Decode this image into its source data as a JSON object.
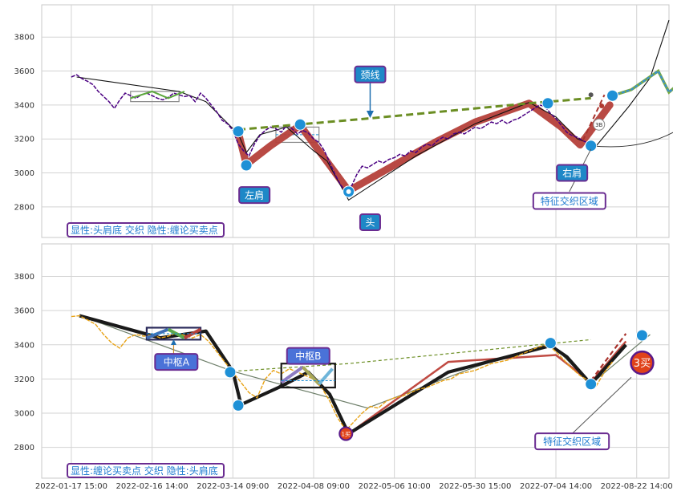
{
  "chart_data": {
    "type": "line",
    "x_tick_labels": [
      "2022-01-17 15:00",
      "2022-02-16 14:00",
      "2022-03-14 09:00",
      "2022-04-08 09:00",
      "2022-05-06 10:00",
      "2022-05-30 15:00",
      "2022-07-04 14:00",
      "2022-08-22 14:00"
    ],
    "x_tick_values": [
      0,
      30,
      60,
      90,
      120,
      150,
      180,
      210
    ],
    "x_range": [
      -11,
      222
    ],
    "y_ticks": [
      2800,
      3000,
      3200,
      3400,
      3600,
      3800
    ],
    "y_range": [
      2620,
      3990
    ],
    "colors": {
      "price_top": "#4b0082",
      "price_bottom": "#e8a317",
      "stroke_red": "#b5403a",
      "dashed_olive": "#6b8e23",
      "blue_dot": "#1e90d6",
      "callout_fill": "#1e88c7",
      "callout_border": "#6a2c91",
      "label_text": "#1e7bd0",
      "grid": "#d3d3d3",
      "bg": "#ffffff"
    },
    "top_panel": {
      "price": [
        [
          0,
          3565
        ],
        [
          2,
          3578
        ],
        [
          4,
          3555
        ],
        [
          6,
          3540
        ],
        [
          8,
          3520
        ],
        [
          10,
          3480
        ],
        [
          12,
          3450
        ],
        [
          14,
          3420
        ],
        [
          16,
          3380
        ],
        [
          18,
          3430
        ],
        [
          20,
          3470
        ],
        [
          22,
          3455
        ],
        [
          24,
          3440
        ],
        [
          26,
          3460
        ],
        [
          28,
          3470
        ],
        [
          30,
          3455
        ],
        [
          32,
          3440
        ],
        [
          34,
          3430
        ],
        [
          36,
          3445
        ],
        [
          38,
          3470
        ],
        [
          40,
          3460
        ],
        [
          42,
          3450
        ],
        [
          44,
          3455
        ],
        [
          46,
          3420
        ],
        [
          48,
          3470
        ],
        [
          50,
          3440
        ],
        [
          52,
          3400
        ],
        [
          54,
          3360
        ],
        [
          56,
          3310
        ],
        [
          58,
          3290
        ],
        [
          60,
          3250
        ],
        [
          62,
          3170
        ],
        [
          64,
          3130
        ],
        [
          66,
          3100
        ],
        [
          68,
          3170
        ],
        [
          70,
          3220
        ],
        [
          72,
          3250
        ],
        [
          74,
          3270
        ],
        [
          76,
          3260
        ],
        [
          78,
          3240
        ],
        [
          80,
          3280
        ],
        [
          82,
          3260
        ],
        [
          84,
          3230
        ],
        [
          86,
          3250
        ],
        [
          88,
          3235
        ],
        [
          90,
          3200
        ],
        [
          92,
          3180
        ],
        [
          94,
          3130
        ],
        [
          96,
          3060
        ],
        [
          98,
          2990
        ],
        [
          100,
          2930
        ],
        [
          102,
          2890
        ],
        [
          104,
          2920
        ],
        [
          106,
          2990
        ],
        [
          108,
          3040
        ],
        [
          110,
          3030
        ],
        [
          112,
          3050
        ],
        [
          114,
          3070
        ],
        [
          116,
          3060
        ],
        [
          118,
          3080
        ],
        [
          120,
          3090
        ],
        [
          122,
          3110
        ],
        [
          124,
          3100
        ],
        [
          126,
          3130
        ],
        [
          128,
          3120
        ],
        [
          130,
          3150
        ],
        [
          132,
          3170
        ],
        [
          134,
          3160
        ],
        [
          136,
          3190
        ],
        [
          138,
          3210
        ],
        [
          140,
          3200
        ],
        [
          142,
          3230
        ],
        [
          144,
          3240
        ],
        [
          146,
          3230
        ],
        [
          148,
          3250
        ],
        [
          150,
          3270
        ],
        [
          152,
          3260
        ],
        [
          154,
          3280
        ],
        [
          156,
          3300
        ],
        [
          158,
          3290
        ],
        [
          160,
          3310
        ],
        [
          162,
          3290
        ],
        [
          164,
          3310
        ],
        [
          166,
          3320
        ],
        [
          168,
          3340
        ],
        [
          170,
          3360
        ],
        [
          172,
          3380
        ],
        [
          174,
          3400
        ],
        [
          176,
          3390
        ],
        [
          178,
          3350
        ],
        [
          180,
          3320
        ],
        [
          182,
          3280
        ],
        [
          184,
          3240
        ],
        [
          186,
          3220
        ],
        [
          188,
          3210
        ],
        [
          190,
          3190
        ],
        [
          192,
          3175
        ],
        [
          194,
          3160
        ]
      ],
      "zigzag": [
        [
          2,
          3565
        ],
        [
          40,
          3480
        ],
        [
          50,
          3420
        ],
        [
          62,
          3230
        ],
        [
          65,
          3120
        ],
        [
          70,
          3225
        ],
        [
          80,
          3270
        ],
        [
          90,
          3130
        ],
        [
          95,
          3070
        ],
        [
          103,
          2840
        ],
        [
          128,
          3100
        ],
        [
          150,
          3290
        ],
        [
          170,
          3415
        ],
        [
          180,
          3330
        ],
        [
          188,
          3200
        ],
        [
          195,
          3160
        ],
        [
          207,
          3390
        ],
        [
          215,
          3560
        ],
        [
          222,
          3900
        ]
      ],
      "bi_red": [
        [
          62,
          3240
        ],
        [
          65,
          3050
        ],
        [
          74,
          3160
        ],
        [
          85,
          3280
        ],
        [
          103,
          2895
        ],
        [
          135,
          3180
        ],
        [
          150,
          3300
        ],
        [
          170,
          3410
        ],
        [
          182,
          3270
        ],
        [
          189,
          3165
        ],
        [
          200,
          3400
        ]
      ],
      "neckline": [
        [
          62,
          3255
        ],
        [
          110,
          3320
        ],
        [
          170,
          3410
        ],
        [
          193,
          3440
        ]
      ],
      "zs_box1": [
        22,
        3420,
        40,
        3480
      ],
      "zs_box2": [
        76,
        3180,
        92,
        3270
      ],
      "green_bi": [
        [
          22,
          3440
        ],
        [
          30,
          3480
        ],
        [
          36,
          3440
        ],
        [
          42,
          3480
        ]
      ],
      "blue_dots": [
        [
          62,
          3245
        ],
        [
          65,
          3045
        ],
        [
          85,
          3285
        ],
        [
          103,
          2890
        ],
        [
          177,
          3410
        ],
        [
          193,
          3160
        ],
        [
          201,
          3455
        ]
      ],
      "dashed_maroon": [
        [
          190,
          3190
        ],
        [
          198,
          3460
        ]
      ],
      "post_segments": [
        [
          [
            201,
            3455
          ],
          [
            208,
            3490
          ],
          [
            218,
            3600
          ],
          [
            222,
            3475
          ],
          [
            252,
            3890
          ]
        ]
      ],
      "annotations": [
        {
          "text": "颈线",
          "x": 111,
          "y": 3580
        },
        {
          "text": "左肩",
          "x": 68,
          "y": 2870
        },
        {
          "text": "头",
          "x": 111,
          "y": 2710
        },
        {
          "text": "右肩",
          "x": 186,
          "y": 3000
        },
        {
          "text": "特征交织区域",
          "x": 185,
          "y": 2835
        }
      ],
      "footer_label": "显性:头肩底 交织 隐性:缠论买卖点",
      "small_badge": "3B"
    },
    "bottom_panel": {
      "price": [
        [
          0,
          3565
        ],
        [
          3,
          3570
        ],
        [
          6,
          3545
        ],
        [
          9,
          3520
        ],
        [
          12,
          3460
        ],
        [
          15,
          3410
        ],
        [
          18,
          3380
        ],
        [
          21,
          3440
        ],
        [
          24,
          3460
        ],
        [
          27,
          3450
        ],
        [
          30,
          3460
        ],
        [
          33,
          3440
        ],
        [
          36,
          3450
        ],
        [
          39,
          3470
        ],
        [
          42,
          3455
        ],
        [
          45,
          3440
        ],
        [
          48,
          3460
        ],
        [
          51,
          3420
        ],
        [
          54,
          3360
        ],
        [
          57,
          3300
        ],
        [
          60,
          3240
        ],
        [
          63,
          3180
        ],
        [
          66,
          3120
        ],
        [
          69,
          3090
        ],
        [
          72,
          3200
        ],
        [
          75,
          3250
        ],
        [
          78,
          3230
        ],
        [
          81,
          3260
        ],
        [
          84,
          3240
        ],
        [
          87,
          3220
        ],
        [
          90,
          3200
        ],
        [
          93,
          3150
        ],
        [
          96,
          3070
        ],
        [
          99,
          2970
        ],
        [
          102,
          2900
        ],
        [
          105,
          2950
        ],
        [
          108,
          3000
        ],
        [
          111,
          3040
        ],
        [
          114,
          3030
        ],
        [
          117,
          3070
        ],
        [
          120,
          3090
        ],
        [
          123,
          3100
        ],
        [
          126,
          3120
        ],
        [
          129,
          3140
        ],
        [
          132,
          3150
        ],
        [
          135,
          3170
        ],
        [
          138,
          3190
        ],
        [
          141,
          3200
        ],
        [
          144,
          3230
        ],
        [
          147,
          3240
        ],
        [
          150,
          3250
        ],
        [
          153,
          3270
        ],
        [
          156,
          3290
        ],
        [
          159,
          3300
        ],
        [
          162,
          3310
        ],
        [
          165,
          3330
        ],
        [
          168,
          3350
        ],
        [
          171,
          3370
        ],
        [
          174,
          3390
        ],
        [
          177,
          3400
        ],
        [
          180,
          3360
        ],
        [
          183,
          3310
        ],
        [
          186,
          3260
        ],
        [
          189,
          3220
        ],
        [
          192,
          3190
        ],
        [
          195,
          3160
        ],
        [
          198,
          3240
        ],
        [
          201,
          3300
        ]
      ],
      "zigzag_black": [
        [
          3,
          3570
        ],
        [
          33,
          3440
        ],
        [
          50,
          3480
        ],
        [
          60,
          3245
        ],
        [
          63,
          3050
        ],
        [
          77,
          3150
        ],
        [
          88,
          3240
        ],
        [
          96,
          3110
        ],
        [
          103,
          2880
        ],
        [
          140,
          3240
        ],
        [
          178,
          3395
        ],
        [
          184,
          3330
        ],
        [
          193,
          3170
        ],
        [
          206,
          3400
        ]
      ],
      "gray_line": [
        [
          5,
          3560
        ],
        [
          60,
          3245
        ],
        [
          110,
          3030
        ],
        [
          150,
          3270
        ],
        [
          178,
          3410
        ],
        [
          193,
          3170
        ],
        [
          215,
          3460
        ]
      ],
      "bi_red": [
        [
          103,
          2880
        ],
        [
          140,
          3300
        ],
        [
          180,
          3340
        ],
        [
          193,
          3180
        ],
        [
          206,
          3420
        ]
      ],
      "green_dash": [
        [
          60,
          3245
        ],
        [
          103,
          3290
        ],
        [
          170,
          3395
        ],
        [
          193,
          3430
        ]
      ],
      "zs_box1": [
        28,
        3430,
        48,
        3500
      ],
      "zs_box2": [
        78,
        3150,
        98,
        3290
      ],
      "blue_dots": [
        [
          59,
          3240
        ],
        [
          62,
          3045
        ],
        [
          178,
          3410
        ],
        [
          193,
          3170
        ],
        [
          212,
          3455
        ]
      ],
      "red_dots": [
        [
          102,
          2880
        ],
        [
          212,
          3295
        ]
      ],
      "dashed_maroon": [
        [
          193,
          3190
        ],
        [
          206,
          3465
        ]
      ],
      "annotations": [
        {
          "text": "中枢A",
          "x": 39,
          "y": 3300
        },
        {
          "text": "中枢B",
          "x": 88,
          "y": 3335
        },
        {
          "text": "特征交织区域",
          "x": 186,
          "y": 2835
        }
      ],
      "footer_label": "显性:缠论买卖点 交织 隐性:头肩底",
      "small_badge_low": "1买",
      "small_badge_high": "3买"
    }
  }
}
